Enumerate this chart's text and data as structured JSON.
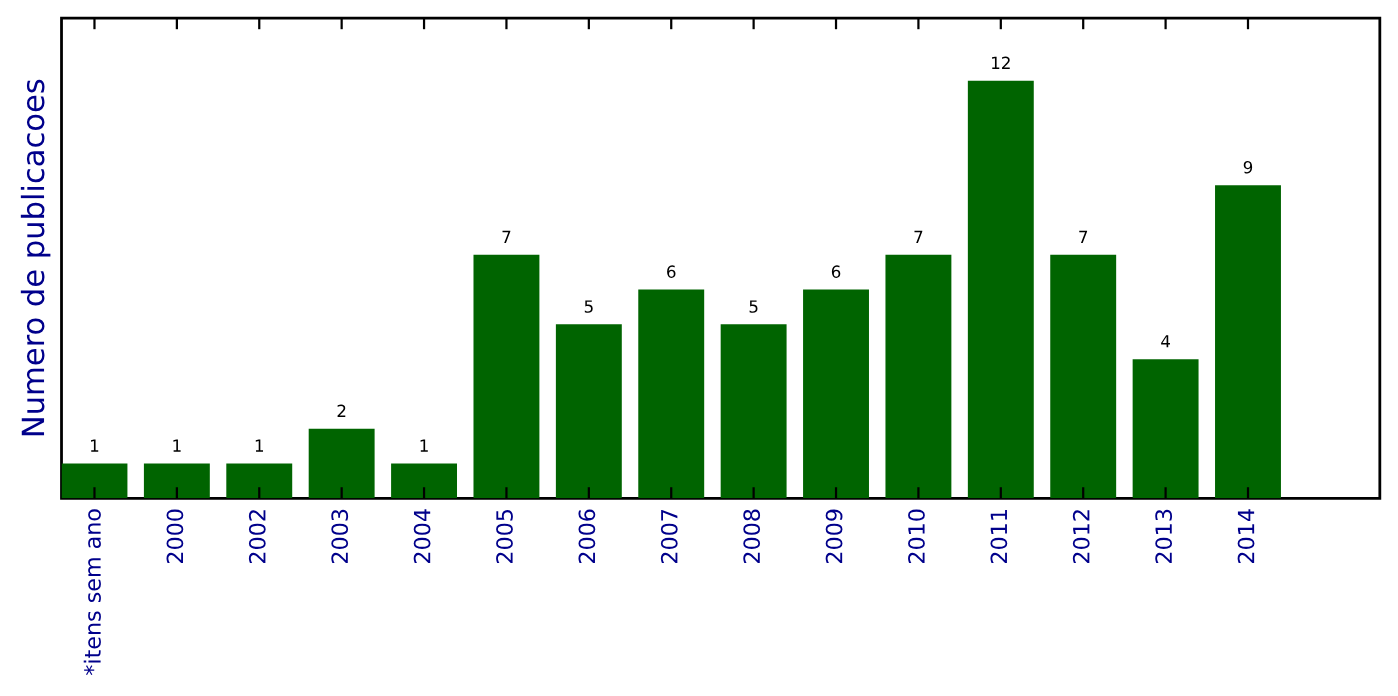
{
  "chart_data": {
    "type": "bar",
    "ylabel": "Numero de publicacoes",
    "categories": [
      "*itens sem ano",
      "2000",
      "2002",
      "2003",
      "2004",
      "2005",
      "2006",
      "2007",
      "2008",
      "2009",
      "2010",
      "2011",
      "2012",
      "2013",
      "2014"
    ],
    "values": [
      1,
      1,
      1,
      2,
      1,
      7,
      5,
      6,
      5,
      6,
      7,
      12,
      7,
      4,
      9
    ],
    "color": "#006400",
    "ylim": [
      0,
      13.8
    ],
    "data_labels": true,
    "tick_labels": "x",
    "grid": false,
    "legend": false
  }
}
